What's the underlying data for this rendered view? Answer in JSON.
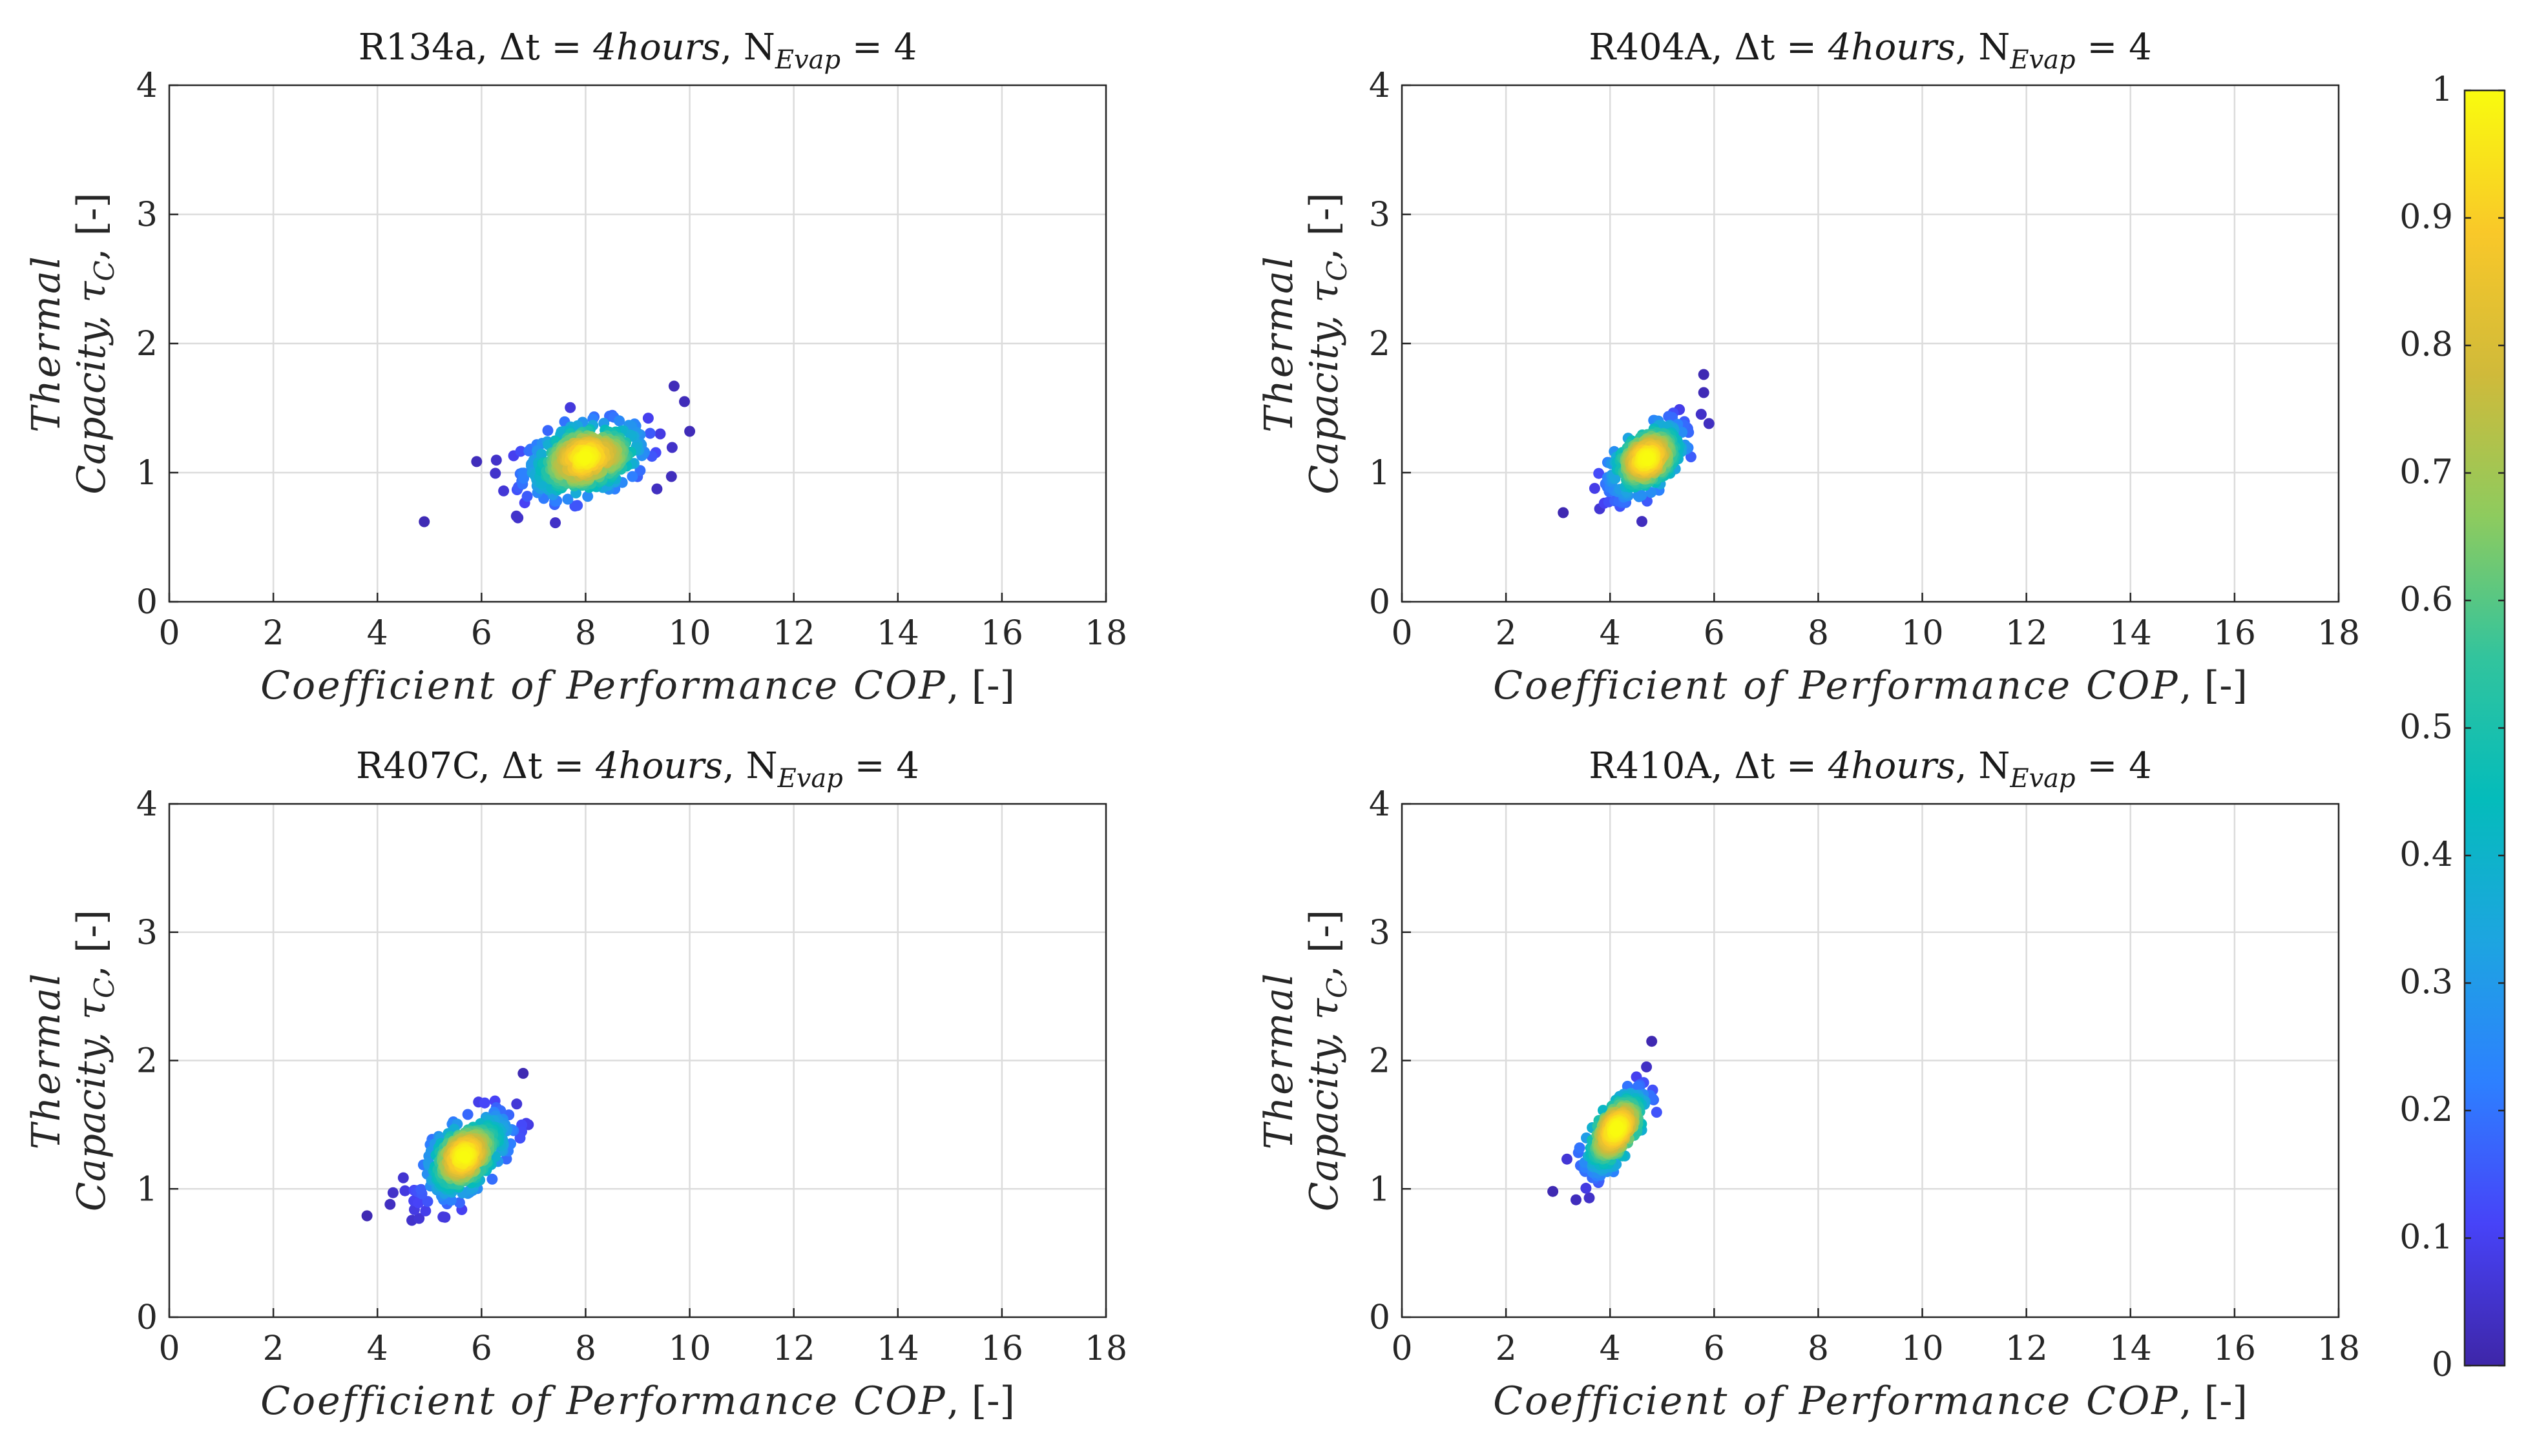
{
  "chart_data": [
    {
      "type": "scatter",
      "title_parts": [
        "R134a, Δt = ",
        "4hours",
        ", N",
        "Evap",
        " = 4"
      ],
      "xlabel_parts": [
        "Coefficient of Performance COP",
        ", [-]"
      ],
      "ylabel_line1": "Thermal",
      "ylabel_line2_parts": [
        "Capacity, τ",
        "C",
        ", [-]"
      ],
      "xlim": [
        0,
        18
      ],
      "ylim": [
        0,
        4
      ],
      "xticks": [
        0,
        2,
        4,
        6,
        8,
        10,
        12,
        14,
        16,
        18
      ],
      "yticks": [
        0,
        1,
        2,
        3,
        4
      ],
      "grid": true,
      "cluster": {
        "center": [
          8.0,
          1.1
        ],
        "spread_major": 1.2,
        "spread_minor": 0.13,
        "angle_deg": 4.5
      },
      "outliers": [
        [
          4.9,
          0.62
        ],
        [
          9.7,
          1.67
        ],
        [
          9.9,
          1.55
        ],
        [
          10.0,
          1.32
        ],
        [
          6.7,
          0.65
        ]
      ]
    },
    {
      "type": "scatter",
      "title_parts": [
        "R404A, Δt = ",
        "4hours",
        ", N",
        "Evap",
        " = 4"
      ],
      "xlabel_parts": [
        "Coefficient of Performance COP",
        ", [-]"
      ],
      "ylabel_line1": "Thermal",
      "ylabel_line2_parts": [
        "Capacity, τ",
        "C",
        ", [-]"
      ],
      "xlim": [
        0,
        18
      ],
      "ylim": [
        0,
        4
      ],
      "xticks": [
        0,
        2,
        4,
        6,
        8,
        10,
        12,
        14,
        16,
        18
      ],
      "yticks": [
        0,
        1,
        2,
        3,
        4
      ],
      "grid": true,
      "cluster": {
        "center": [
          4.7,
          1.1
        ],
        "spread_major": 0.7,
        "spread_minor": 0.11,
        "angle_deg": 14
      },
      "outliers": [
        [
          3.1,
          0.69
        ],
        [
          5.8,
          1.76
        ],
        [
          5.8,
          1.62
        ],
        [
          3.8,
          0.72
        ],
        [
          5.9,
          1.38
        ]
      ]
    },
    {
      "type": "scatter",
      "title_parts": [
        "R407C, Δt = ",
        "4hours",
        ", N",
        "Evap",
        " = 4"
      ],
      "xlabel_parts": [
        "Coefficient of Performance COP",
        ", [-]"
      ],
      "ylabel_line1": "Thermal",
      "ylabel_line2_parts": [
        "Capacity, τ",
        "C",
        ", [-]"
      ],
      "xlim": [
        0,
        18
      ],
      "ylim": [
        0,
        4
      ],
      "xticks": [
        0,
        2,
        4,
        6,
        8,
        10,
        12,
        14,
        16,
        18
      ],
      "yticks": [
        0,
        1,
        2,
        3,
        4
      ],
      "grid": true,
      "cluster": {
        "center": [
          5.7,
          1.25
        ],
        "spread_major": 0.8,
        "spread_minor": 0.12,
        "angle_deg": 15
      },
      "outliers": [
        [
          3.8,
          0.79
        ],
        [
          4.8,
          0.77
        ],
        [
          6.8,
          1.9
        ],
        [
          6.9,
          1.5
        ],
        [
          4.3,
          0.97
        ]
      ]
    },
    {
      "type": "scatter",
      "title_parts": [
        "R410A, Δt = ",
        "4hours",
        ", N",
        "Evap",
        " = 4"
      ],
      "xlabel_parts": [
        "Coefficient of Performance COP",
        ", [-]"
      ],
      "ylabel_line1": "Thermal",
      "ylabel_line2_parts": [
        "Capacity, τ",
        "C",
        ", [-]"
      ],
      "xlim": [
        0,
        18
      ],
      "ylim": [
        0,
        4
      ],
      "xticks": [
        0,
        2,
        4,
        6,
        8,
        10,
        12,
        14,
        16,
        18
      ],
      "yticks": [
        0,
        1,
        2,
        3,
        4
      ],
      "grid": true,
      "cluster": {
        "center": [
          4.1,
          1.45
        ],
        "spread_major": 0.55,
        "spread_minor": 0.1,
        "angle_deg": 26
      },
      "outliers": [
        [
          2.9,
          0.98
        ],
        [
          4.8,
          2.15
        ],
        [
          4.7,
          1.95
        ],
        [
          3.6,
          0.93
        ],
        [
          4.8,
          1.7
        ]
      ]
    }
  ],
  "colorbar": {
    "range": [
      0,
      1
    ],
    "ticks": [
      "0",
      "0.1",
      "0.2",
      "0.3",
      "0.4",
      "0.5",
      "0.6",
      "0.7",
      "0.8",
      "0.9",
      "1"
    ],
    "colors": [
      "#3e26a8",
      "#4743f8",
      "#2d80ff",
      "#1da5e0",
      "#04bcbb",
      "#32c49d",
      "#8ecb5e",
      "#d0ba3a",
      "#f9c829",
      "#f9fb0e"
    ]
  }
}
